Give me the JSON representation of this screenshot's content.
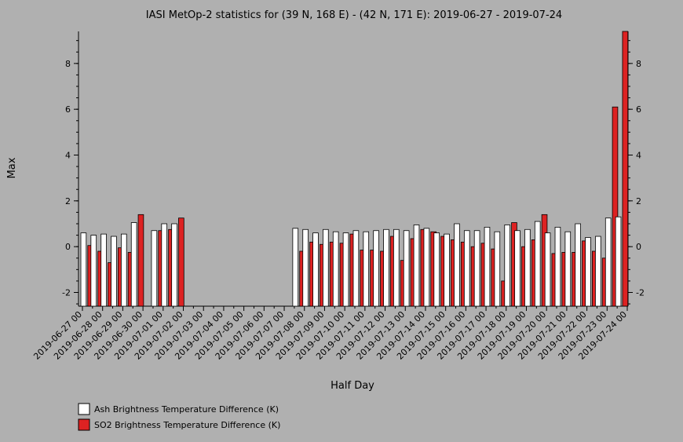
{
  "chart_data": {
    "type": "bar",
    "title": "IASI MetOp-2 statistics for (39 N, 168 E) - (42 N, 171 E): 2019-06-27 - 2019-07-24",
    "xlabel": "Half Day",
    "ylabel": "Max",
    "ylim": [
      -2.6,
      9.4
    ],
    "yticks": [
      -2,
      0,
      2,
      4,
      6,
      8
    ],
    "categories": [
      "2019-06-27 00",
      "2019-06-27 12",
      "2019-06-28 00",
      "2019-06-28 12",
      "2019-06-29 00",
      "2019-06-29 12",
      "2019-06-30 00",
      "2019-06-30 12",
      "2019-07-01 00",
      "2019-07-01 12",
      "2019-07-02 00",
      "2019-07-02 12",
      "2019-07-03 00",
      "2019-07-03 12",
      "2019-07-04 00",
      "2019-07-04 12",
      "2019-07-05 00",
      "2019-07-05 12",
      "2019-07-06 00",
      "2019-07-06 12",
      "2019-07-07 00",
      "2019-07-07 12",
      "2019-07-08 00",
      "2019-07-08 12",
      "2019-07-09 00",
      "2019-07-09 12",
      "2019-07-10 00",
      "2019-07-10 12",
      "2019-07-11 00",
      "2019-07-11 12",
      "2019-07-12 00",
      "2019-07-12 12",
      "2019-07-13 00",
      "2019-07-13 12",
      "2019-07-14 00",
      "2019-07-14 12",
      "2019-07-15 00",
      "2019-07-15 12",
      "2019-07-16 00",
      "2019-07-16 12",
      "2019-07-17 00",
      "2019-07-17 12",
      "2019-07-18 00",
      "2019-07-18 12",
      "2019-07-19 00",
      "2019-07-19 12",
      "2019-07-20 00",
      "2019-07-20 12",
      "2019-07-21 00",
      "2019-07-21 12",
      "2019-07-22 00",
      "2019-07-22 12",
      "2019-07-23 00",
      "2019-07-23 12",
      "2019-07-24 00"
    ],
    "tick_labels": [
      "2019-06-27 00",
      "2019-06-28 00",
      "2019-06-29 00",
      "2019-06-30 00",
      "2019-07-01 00",
      "2019-07-02 00",
      "2019-07-03 00",
      "2019-07-04 00",
      "2019-07-05 00",
      "2019-07-06 00",
      "2019-07-07 00",
      "2019-07-08 00",
      "2019-07-09 00",
      "2019-07-10 00",
      "2019-07-11 00",
      "2019-07-12 00",
      "2019-07-13 00",
      "2019-07-14 00",
      "2019-07-15 00",
      "2019-07-16 00",
      "2019-07-17 00",
      "2019-07-18 00",
      "2019-07-19 00",
      "2019-07-20 00",
      "2019-07-21 00",
      "2019-07-22 00",
      "2019-07-23 00",
      "2019-07-24 00"
    ],
    "series": [
      {
        "name": "Ash Brightness Temperature Difference (K)",
        "color": "#ffffff",
        "values": [
          0.6,
          0.5,
          0.55,
          0.45,
          0.55,
          1.05,
          null,
          0.7,
          1.0,
          1.0,
          null,
          null,
          null,
          null,
          null,
          null,
          null,
          null,
          null,
          null,
          null,
          0.8,
          0.75,
          0.6,
          0.75,
          0.65,
          0.6,
          0.7,
          0.65,
          0.7,
          0.75,
          0.75,
          0.7,
          0.95,
          0.8,
          0.6,
          0.55,
          1.0,
          0.7,
          0.7,
          0.85,
          0.65,
          0.95,
          0.7,
          0.75,
          1.1,
          0.6,
          0.85,
          0.65,
          1.0,
          0.4,
          0.45,
          1.25,
          1.3,
          null
        ]
      },
      {
        "name": "SO2 Brightness Temperature Difference (K)",
        "color": "#dd2222",
        "values": [
          0.05,
          -0.2,
          -0.7,
          -0.05,
          -0.25,
          1.4,
          null,
          0.7,
          0.75,
          1.25,
          null,
          null,
          null,
          null,
          null,
          null,
          null,
          null,
          null,
          null,
          null,
          -0.2,
          0.2,
          0.1,
          0.2,
          0.15,
          0.55,
          -0.15,
          -0.15,
          -0.2,
          0.45,
          -0.6,
          0.35,
          0.75,
          0.65,
          0.45,
          0.3,
          0.2,
          0.0,
          0.15,
          -0.1,
          -1.5,
          1.05,
          0.0,
          0.3,
          1.4,
          -0.3,
          -0.25,
          -0.25,
          0.25,
          -0.2,
          -0.5,
          6.1,
          9.4,
          null
        ]
      }
    ],
    "legend_position": "bottom-left",
    "grid": false
  }
}
